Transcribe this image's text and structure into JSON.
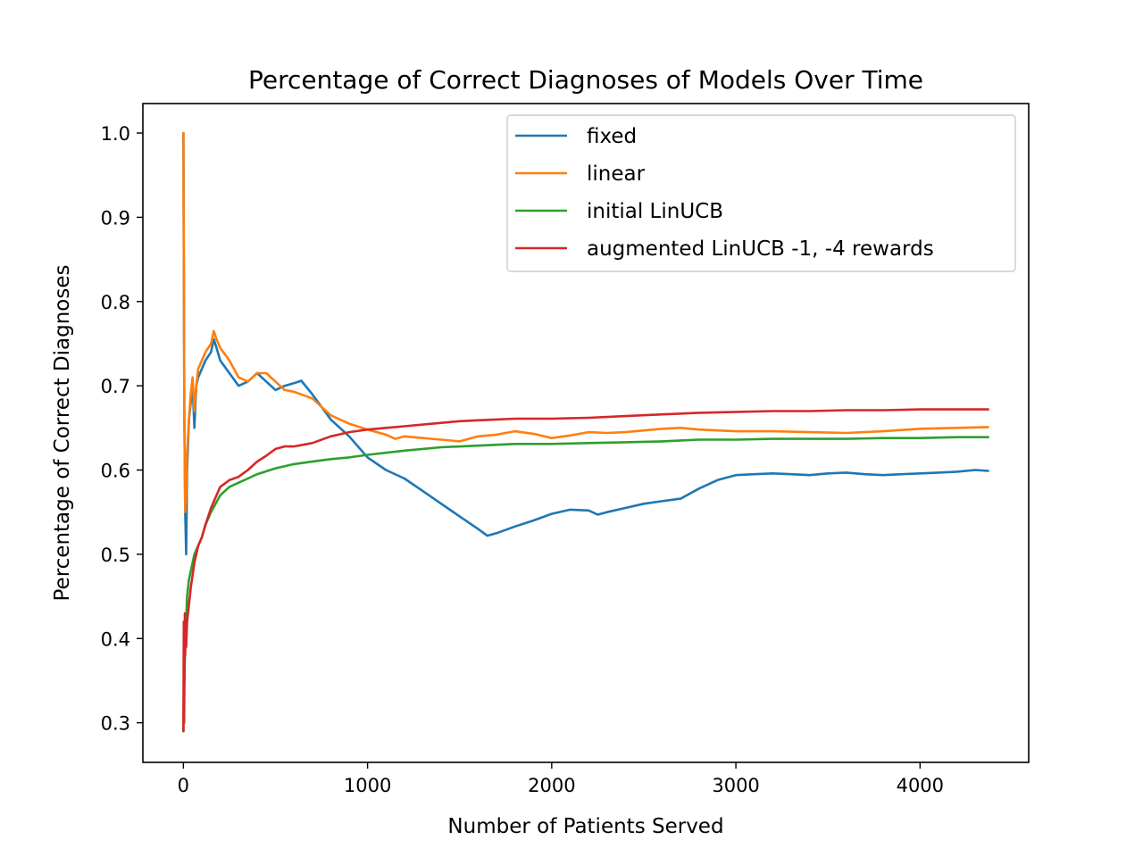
{
  "chart_data": {
    "type": "line",
    "title": "Percentage of Correct Diagnoses of Models Over Time",
    "xlabel": "Number of Patients Served",
    "ylabel": "Percentage of Correct Diagnoses",
    "xlim": [
      -220,
      4590
    ],
    "ylim": [
      0.253,
      1.035
    ],
    "xticks": [
      0,
      1000,
      2000,
      3000,
      4000
    ],
    "xtick_labels": [
      "0",
      "1000",
      "2000",
      "3000",
      "4000"
    ],
    "yticks": [
      0.3,
      0.4,
      0.5,
      0.6,
      0.7,
      0.8,
      0.9,
      1.0
    ],
    "ytick_labels": [
      "0.3",
      "0.4",
      "0.5",
      "0.6",
      "0.7",
      "0.8",
      "0.9",
      "1.0"
    ],
    "grid": false,
    "legend_position": "top-right",
    "series": [
      {
        "name": "fixed",
        "color": "#1f77b4",
        "x": [
          0,
          2,
          5,
          10,
          15,
          20,
          30,
          40,
          50,
          60,
          70,
          80,
          100,
          120,
          150,
          165,
          180,
          200,
          250,
          300,
          350,
          400,
          450,
          500,
          550,
          600,
          640,
          700,
          800,
          900,
          1000,
          1100,
          1200,
          1300,
          1400,
          1500,
          1600,
          1650,
          1700,
          1800,
          1900,
          2000,
          2100,
          2200,
          2250,
          2300,
          2400,
          2500,
          2600,
          2700,
          2800,
          2900,
          3000,
          3100,
          3200,
          3300,
          3400,
          3500,
          3600,
          3700,
          3800,
          3900,
          4000,
          4100,
          4200,
          4300,
          4370
        ],
        "y": [
          1.0,
          0.86,
          0.67,
          0.55,
          0.5,
          0.6,
          0.66,
          0.68,
          0.7,
          0.65,
          0.7,
          0.71,
          0.72,
          0.73,
          0.74,
          0.755,
          0.745,
          0.73,
          0.715,
          0.7,
          0.705,
          0.715,
          0.705,
          0.695,
          0.7,
          0.703,
          0.706,
          0.69,
          0.66,
          0.64,
          0.615,
          0.6,
          0.59,
          0.575,
          0.56,
          0.545,
          0.53,
          0.522,
          0.525,
          0.533,
          0.54,
          0.548,
          0.553,
          0.552,
          0.547,
          0.55,
          0.555,
          0.56,
          0.563,
          0.566,
          0.578,
          0.588,
          0.594,
          0.595,
          0.596,
          0.595,
          0.594,
          0.596,
          0.597,
          0.595,
          0.594,
          0.595,
          0.596,
          0.597,
          0.598,
          0.6,
          0.599
        ]
      },
      {
        "name": "linear",
        "color": "#ff7f0e",
        "x": [
          0,
          2,
          5,
          10,
          15,
          20,
          30,
          40,
          50,
          60,
          70,
          80,
          100,
          120,
          150,
          165,
          180,
          200,
          250,
          300,
          350,
          400,
          450,
          500,
          550,
          600,
          700,
          800,
          900,
          1000,
          1100,
          1150,
          1200,
          1300,
          1400,
          1500,
          1600,
          1700,
          1800,
          1900,
          2000,
          2100,
          2200,
          2300,
          2400,
          2500,
          2600,
          2700,
          2800,
          2900,
          3000,
          3200,
          3400,
          3600,
          3800,
          4000,
          4200,
          4370
        ],
        "y": [
          1.0,
          0.86,
          0.67,
          0.55,
          0.57,
          0.62,
          0.66,
          0.69,
          0.71,
          0.67,
          0.7,
          0.72,
          0.73,
          0.74,
          0.75,
          0.765,
          0.755,
          0.745,
          0.73,
          0.71,
          0.705,
          0.715,
          0.715,
          0.705,
          0.695,
          0.693,
          0.685,
          0.665,
          0.655,
          0.648,
          0.642,
          0.637,
          0.64,
          0.638,
          0.636,
          0.634,
          0.64,
          0.642,
          0.646,
          0.643,
          0.638,
          0.641,
          0.645,
          0.644,
          0.645,
          0.647,
          0.649,
          0.65,
          0.648,
          0.647,
          0.646,
          0.646,
          0.645,
          0.644,
          0.646,
          0.649,
          0.65,
          0.651
        ]
      },
      {
        "name": "initial LinUCB",
        "color": "#2ca02c",
        "x": [
          0,
          3,
          6,
          10,
          15,
          20,
          30,
          40,
          60,
          80,
          100,
          120,
          150,
          200,
          250,
          300,
          350,
          400,
          500,
          600,
          700,
          800,
          900,
          1000,
          1200,
          1400,
          1600,
          1800,
          2000,
          2200,
          2400,
          2600,
          2800,
          3000,
          3200,
          3400,
          3600,
          3800,
          4000,
          4200,
          4370
        ],
        "y": [
          0.29,
          0.37,
          0.35,
          0.4,
          0.42,
          0.45,
          0.47,
          0.48,
          0.5,
          0.51,
          0.52,
          0.535,
          0.55,
          0.57,
          0.58,
          0.585,
          0.59,
          0.595,
          0.602,
          0.607,
          0.61,
          0.613,
          0.615,
          0.618,
          0.623,
          0.627,
          0.629,
          0.631,
          0.631,
          0.632,
          0.633,
          0.634,
          0.636,
          0.636,
          0.637,
          0.637,
          0.637,
          0.638,
          0.638,
          0.639,
          0.639
        ]
      },
      {
        "name": "augmented LinUCB -1, -4 rewards",
        "color": "#d62728",
        "x": [
          0,
          2,
          4,
          6,
          8,
          10,
          12,
          15,
          20,
          30,
          40,
          60,
          80,
          100,
          120,
          150,
          200,
          250,
          300,
          350,
          400,
          450,
          500,
          550,
          600,
          700,
          800,
          900,
          1000,
          1100,
          1200,
          1300,
          1400,
          1500,
          1600,
          1700,
          1800,
          1900,
          2000,
          2200,
          2400,
          2600,
          2800,
          3000,
          3200,
          3400,
          3600,
          3800,
          4000,
          4200,
          4370
        ],
        "y": [
          0.29,
          0.42,
          0.3,
          0.36,
          0.43,
          0.38,
          0.41,
          0.39,
          0.42,
          0.44,
          0.46,
          0.49,
          0.51,
          0.52,
          0.535,
          0.555,
          0.58,
          0.588,
          0.592,
          0.6,
          0.61,
          0.617,
          0.625,
          0.628,
          0.628,
          0.632,
          0.64,
          0.645,
          0.648,
          0.65,
          0.652,
          0.654,
          0.656,
          0.658,
          0.659,
          0.66,
          0.661,
          0.661,
          0.661,
          0.662,
          0.664,
          0.666,
          0.668,
          0.669,
          0.67,
          0.67,
          0.671,
          0.671,
          0.672,
          0.672,
          0.672
        ]
      }
    ]
  }
}
